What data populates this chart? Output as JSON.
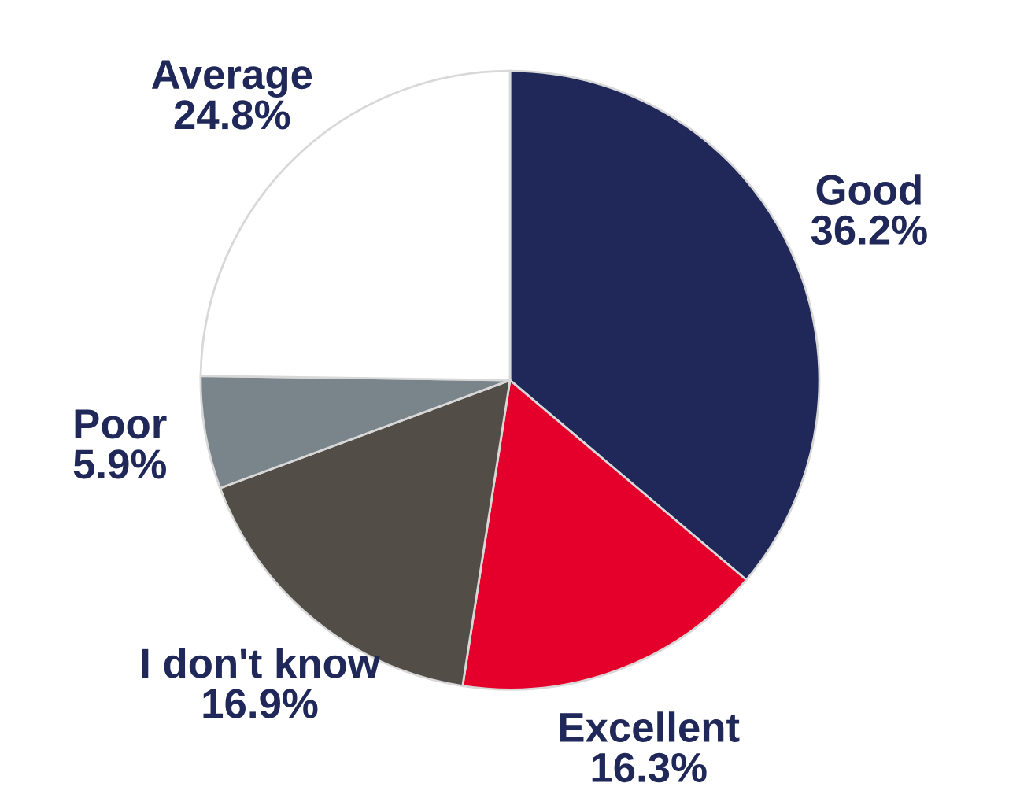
{
  "chart_data": {
    "type": "pie",
    "categories": [
      "Good",
      "Excellent",
      "I don't know",
      "Poor",
      "Average"
    ],
    "values": [
      36.2,
      16.3,
      16.9,
      5.9,
      24.8
    ],
    "colors": [
      "#1f2858",
      "#e4002b",
      "#524d47",
      "#7a858b",
      "#ffffff"
    ],
    "value_labels": [
      "36.2%",
      "16.3%",
      "16.9%",
      "5.9%",
      "24.8%"
    ],
    "legend": false
  }
}
